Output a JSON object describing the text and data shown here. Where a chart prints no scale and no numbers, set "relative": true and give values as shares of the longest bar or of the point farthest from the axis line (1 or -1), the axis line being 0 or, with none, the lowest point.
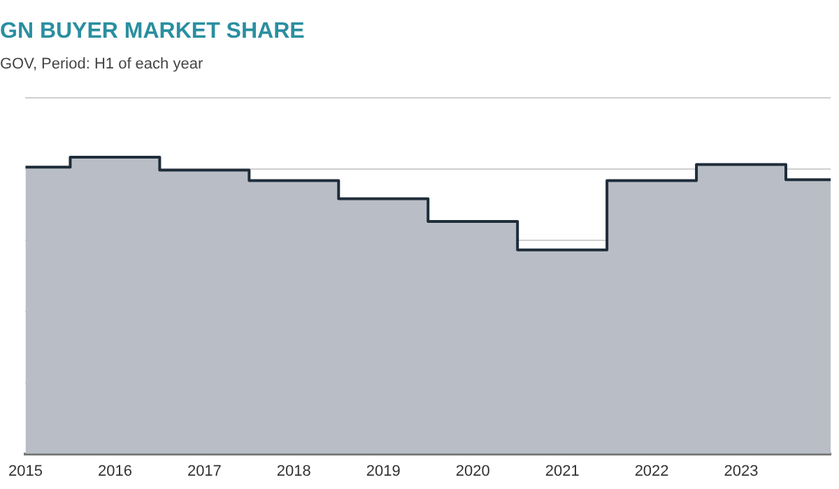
{
  "chart_data": {
    "type": "area",
    "title": "GN BUYER MARKET SHARE",
    "subtitle": "GOV, Period: H1 of each year",
    "categories": [
      "2015",
      "2016",
      "2017",
      "2018",
      "2019",
      "2020",
      "2021",
      "2022",
      "2023",
      null
    ],
    "relative": true,
    "grid": "y",
    "series": [
      {
        "type": "step",
        "color": "#1f2d3a",
        "values": [
          0.966,
          1,
          0.956,
          0.921,
          0.86,
          0.783,
          0.687,
          0.921,
          0.975,
          0.924
        ]
      }
    ]
  }
}
